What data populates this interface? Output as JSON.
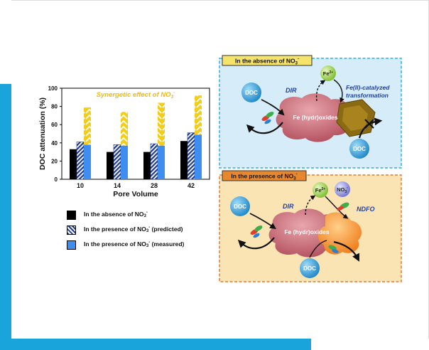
{
  "colors": {
    "frame_blue": "#19a4dc",
    "absent_bar": "#000000",
    "predicted_bar": "#1f3a8f",
    "measured_bar": "#3d8ef0",
    "synergy_yellow": "#f2cd1a",
    "absence_box_border": "#2fb0e6",
    "absence_box_fill": "#d6ecf8",
    "presence_box_border": "#e57a2f",
    "presence_box_fill": "#fbe4b4",
    "fe_oxide_pink": "#c9616e",
    "transformed_brown": "#8a6a12",
    "doc_blue": "#2e9fd9",
    "fe2_green": "#9ed14b",
    "nitrate_purple": "#7b7fd6"
  },
  "chart_data": {
    "type": "bar",
    "xlabel": "Pore Volume",
    "ylabel": "DOC attenuation (%)",
    "ylim": [
      0,
      100
    ],
    "yticks": [
      "0",
      "20",
      "40",
      "60",
      "80",
      "100"
    ],
    "categories": [
      "10",
      "14",
      "28",
      "42"
    ],
    "series": [
      {
        "name": "In the absence of NO3-",
        "values": [
          33,
          30,
          30,
          42
        ]
      },
      {
        "name": "In the presence of NO3- (predicted)",
        "values": [
          41,
          38,
          39,
          51
        ]
      },
      {
        "name": "In the presence of NO3- (measured)",
        "values": [
          79,
          74,
          84,
          92
        ]
      }
    ],
    "measured_base": [
      38,
      37,
      37,
      49
    ],
    "annotation": "Synergetic effect of NO3-"
  },
  "legend": [
    {
      "text": "In the absence of NO",
      "sub": "3",
      "sup": "-",
      "suffix": ""
    },
    {
      "text": "In the presence of NO",
      "sub": "3",
      "sup": "-",
      "suffix": " (predicted)"
    },
    {
      "text": "In the presence of NO",
      "sub": "3",
      "sup": "-",
      "suffix": " (measured)"
    }
  ],
  "absence_panel": {
    "title_text": "In the absence of NO",
    "title_sub": "3",
    "title_sup": "-",
    "doc": "DOC",
    "fe2": "Fe",
    "fe2_sup": "2+",
    "dir": "DIR",
    "transform_line1": "Fe(II)-catalyzed",
    "transform_line2": "transformation",
    "oxide": "Fe (hydr)oxides"
  },
  "presence_panel": {
    "title_text": "In the presence of NO",
    "title_sub": "3",
    "title_sup": "-",
    "doc": "DOC",
    "fe2": "Fe",
    "fe2_sup": "2+",
    "no3": "NO",
    "no3_sub": "3",
    "no3_sup": "-",
    "dir": "DIR",
    "ndfo": "NDFO",
    "oxide": "Fe (hydr)oxides"
  }
}
